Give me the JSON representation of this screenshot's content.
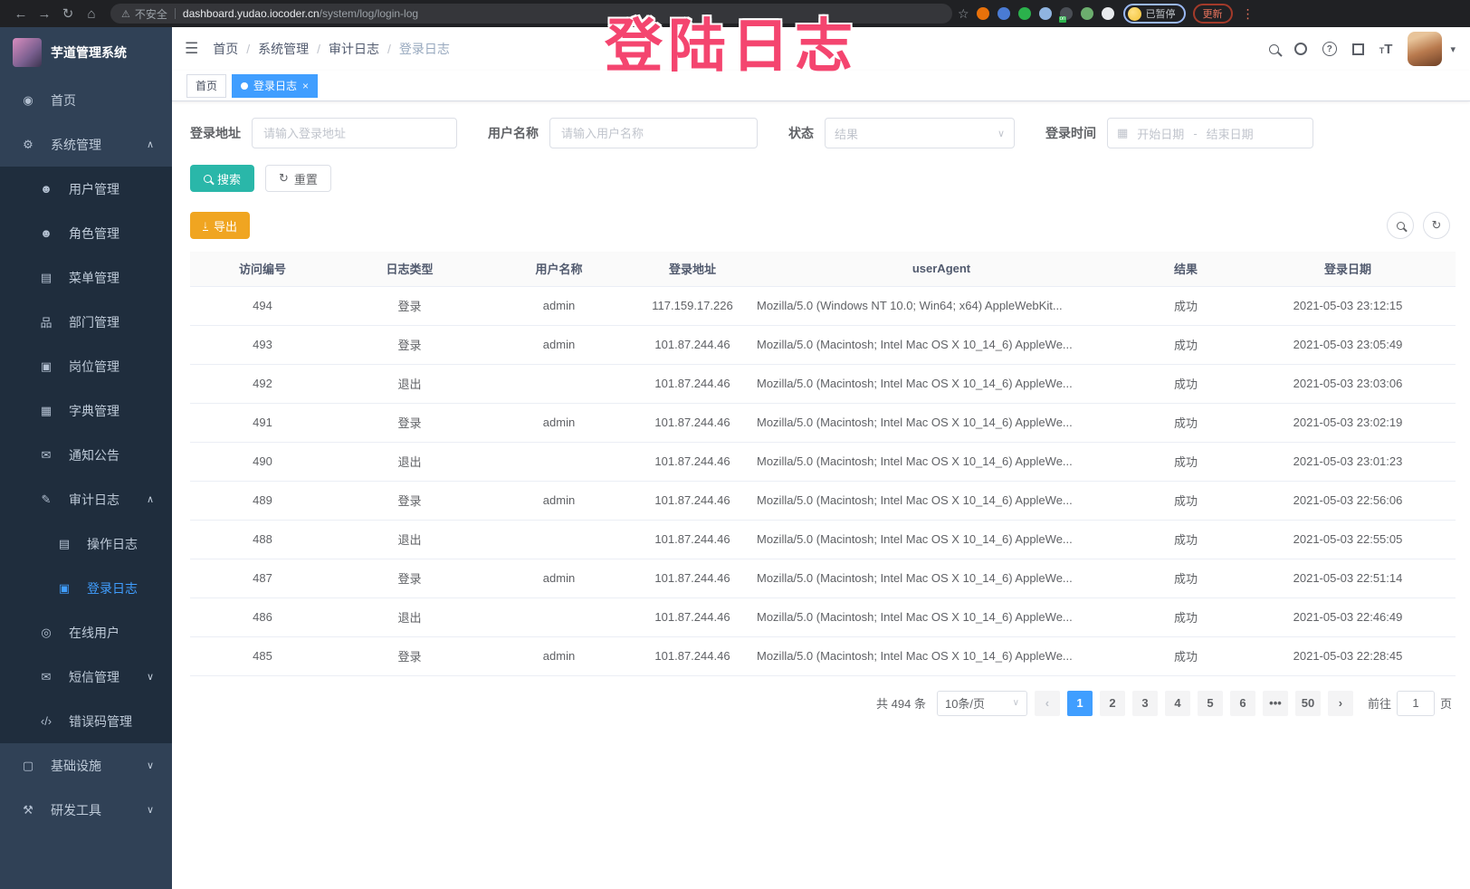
{
  "browser": {
    "back_icon": "←",
    "forward_icon": "→",
    "reload_icon": "↻",
    "home_icon": "⌂",
    "warning_icon": "⚠",
    "security_label": "不安全",
    "url_host": "dashboard.yudao.iocoder.cn",
    "url_path": "/system/log/login-log",
    "bookmark_icon": "☆",
    "extensions": [
      {
        "name": "extension-orange-circle",
        "color": "#e8710a"
      },
      {
        "name": "extension-blue-shield",
        "color": "#4a7bd4"
      },
      {
        "name": "extension-green-circle",
        "color": "#2bb24c"
      },
      {
        "name": "extension-blue-gray-puzzle",
        "color": "#8fb4e0"
      },
      {
        "name": "extension-dark-on-switch",
        "color": "#4a4e55",
        "badge": "on"
      },
      {
        "name": "extension-green-leaf",
        "color": "#6cae6e"
      },
      {
        "name": "extension-white-puzzle",
        "color": "#e8eaed"
      }
    ],
    "profile_status": "已暂停",
    "update_label": "更新",
    "menu_icon": "⋮"
  },
  "overlay": {
    "text": "登陆日志",
    "color": "#f4456f"
  },
  "sidebar": {
    "app_title": "芋道管理系统",
    "items": [
      {
        "label": "首页",
        "icon": "dashboard-icon",
        "glyph": "◉",
        "level": 0
      },
      {
        "label": "系统管理",
        "icon": "gear-icon",
        "glyph": "⚙",
        "level": 0,
        "arrow": "∧"
      },
      {
        "label": "用户管理",
        "icon": "user-icon",
        "glyph": "☻",
        "level": 1,
        "dark": true
      },
      {
        "label": "角色管理",
        "icon": "roles-icon",
        "glyph": "☻",
        "level": 1,
        "dark": true
      },
      {
        "label": "菜单管理",
        "icon": "menu-tree-icon",
        "glyph": "▤",
        "level": 1,
        "dark": true
      },
      {
        "label": "部门管理",
        "icon": "org-tree-icon",
        "glyph": "品",
        "level": 1,
        "dark": true
      },
      {
        "label": "岗位管理",
        "icon": "post-icon",
        "glyph": "▣",
        "level": 1,
        "dark": true
      },
      {
        "label": "字典管理",
        "icon": "dict-icon",
        "glyph": "▦",
        "level": 1,
        "dark": true
      },
      {
        "label": "通知公告",
        "icon": "notice-icon",
        "glyph": "✉",
        "level": 1,
        "dark": true
      },
      {
        "label": "审计日志",
        "icon": "audit-log-icon",
        "glyph": "✎",
        "level": 1,
        "arrow": "∧",
        "dark": true
      },
      {
        "label": "操作日志",
        "icon": "operate-log-icon",
        "glyph": "▤",
        "level": 2,
        "dark": true
      },
      {
        "label": "登录日志",
        "icon": "login-log-icon",
        "glyph": "▣",
        "level": 2,
        "dark": true,
        "active": true
      },
      {
        "label": "在线用户",
        "icon": "online-user-icon",
        "glyph": "◎",
        "level": 1,
        "dark": true
      },
      {
        "label": "短信管理",
        "icon": "sms-icon",
        "glyph": "✉",
        "level": 1,
        "arrow": "∨",
        "dark": true
      },
      {
        "label": "错误码管理",
        "icon": "error-code-icon",
        "glyph": "‹/›",
        "level": 1,
        "dark": true
      },
      {
        "label": "基础设施",
        "icon": "infra-icon",
        "glyph": "▢",
        "level": 0,
        "arrow": "∨"
      },
      {
        "label": "研发工具",
        "icon": "dev-tools-icon",
        "glyph": "⚒",
        "level": 0,
        "arrow": "∨"
      }
    ]
  },
  "header": {
    "hamburger_icon": "☰",
    "breadcrumb": [
      "首页",
      "系统管理",
      "审计日志",
      "登录日志"
    ],
    "help_glyph": "?",
    "fontsize_glyph": "T",
    "caret_glyph": "▾"
  },
  "tags": [
    {
      "label": "首页",
      "active": false
    },
    {
      "label": "登录日志",
      "active": true,
      "closable": true
    }
  ],
  "filters": {
    "address_label": "登录地址",
    "address_placeholder": "请输入登录地址",
    "username_label": "用户名称",
    "username_placeholder": "请输入用户名称",
    "status_label": "状态",
    "status_placeholder": "结果",
    "time_label": "登录时间",
    "date_icon": "▦",
    "start_placeholder": "开始日期",
    "range_separator": "-",
    "end_placeholder": "结束日期",
    "search_label": "搜索",
    "reset_label": "重置",
    "reset_icon": "↻"
  },
  "toolbar": {
    "export_label": "导出",
    "export_icon": "↓",
    "refresh_icon": "↻"
  },
  "table": {
    "headers": [
      "访问编号",
      "日志类型",
      "用户名称",
      "登录地址",
      "userAgent",
      "结果",
      "登录日期"
    ],
    "rows": [
      [
        "494",
        "登录",
        "admin",
        "117.159.17.226",
        "Mozilla/5.0 (Windows NT 10.0; Win64; x64) AppleWebKit...",
        "成功",
        "2021-05-03 23:12:15"
      ],
      [
        "493",
        "登录",
        "admin",
        "101.87.244.46",
        "Mozilla/5.0 (Macintosh; Intel Mac OS X 10_14_6) AppleWe...",
        "成功",
        "2021-05-03 23:05:49"
      ],
      [
        "492",
        "退出",
        "",
        "101.87.244.46",
        "Mozilla/5.0 (Macintosh; Intel Mac OS X 10_14_6) AppleWe...",
        "成功",
        "2021-05-03 23:03:06"
      ],
      [
        "491",
        "登录",
        "admin",
        "101.87.244.46",
        "Mozilla/5.0 (Macintosh; Intel Mac OS X 10_14_6) AppleWe...",
        "成功",
        "2021-05-03 23:02:19"
      ],
      [
        "490",
        "退出",
        "",
        "101.87.244.46",
        "Mozilla/5.0 (Macintosh; Intel Mac OS X 10_14_6) AppleWe...",
        "成功",
        "2021-05-03 23:01:23"
      ],
      [
        "489",
        "登录",
        "admin",
        "101.87.244.46",
        "Mozilla/5.0 (Macintosh; Intel Mac OS X 10_14_6) AppleWe...",
        "成功",
        "2021-05-03 22:56:06"
      ],
      [
        "488",
        "退出",
        "",
        "101.87.244.46",
        "Mozilla/5.0 (Macintosh; Intel Mac OS X 10_14_6) AppleWe...",
        "成功",
        "2021-05-03 22:55:05"
      ],
      [
        "487",
        "登录",
        "admin",
        "101.87.244.46",
        "Mozilla/5.0 (Macintosh; Intel Mac OS X 10_14_6) AppleWe...",
        "成功",
        "2021-05-03 22:51:14"
      ],
      [
        "486",
        "退出",
        "",
        "101.87.244.46",
        "Mozilla/5.0 (Macintosh; Intel Mac OS X 10_14_6) AppleWe...",
        "成功",
        "2021-05-03 22:46:49"
      ],
      [
        "485",
        "登录",
        "admin",
        "101.87.244.46",
        "Mozilla/5.0 (Macintosh; Intel Mac OS X 10_14_6) AppleWe...",
        "成功",
        "2021-05-03 22:28:45"
      ]
    ]
  },
  "pagination": {
    "total": "共 494 条",
    "page_size": "10条/页",
    "prev_icon": "‹",
    "next_icon": "›",
    "pages": [
      "1",
      "2",
      "3",
      "4",
      "5",
      "6",
      "•••",
      "50"
    ],
    "active_page": "1",
    "goto_label": "前往",
    "goto_value": "1",
    "page_unit": "页"
  },
  "colors": {
    "accent": "#409eff",
    "search_button": "#2ab7a9",
    "export_button": "#f0a521",
    "sidebar": "#304156",
    "submenu": "#1f2d3d"
  }
}
